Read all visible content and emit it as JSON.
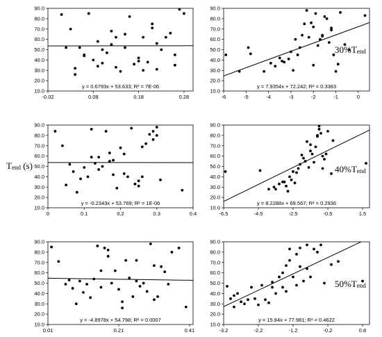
{
  "ylabel": {
    "main": "T",
    "sub": "end",
    "unit": " (s)"
  },
  "row_labels": [
    {
      "prefix": "30%T",
      "sub": "end"
    },
    {
      "prefix": "40%T",
      "sub": "end"
    },
    {
      "prefix": "50%T",
      "sub": "end"
    }
  ],
  "chart_data": [
    {
      "type": "scatter",
      "row": 0,
      "col": 0,
      "xlim": [
        -0.02,
        0.3
      ],
      "ylim": [
        10,
        90
      ],
      "xticks": [
        -0.02,
        0.08,
        0.18,
        0.28
      ],
      "xtick_labels": [
        "-0.02",
        "0.08",
        "0.18",
        "0.28"
      ],
      "yticks": [
        10,
        20,
        30,
        40,
        50,
        60,
        70,
        80,
        90
      ],
      "ytick_labels": [
        "10.0",
        "20.0",
        "30.0",
        "40.0",
        "50.0",
        "60.0",
        "70.0",
        "80.0",
        "90.0"
      ],
      "fit": {
        "slope": 0.6793,
        "intercept": 53.633
      },
      "equation": "y = 0.6793x + 53.633;  R² = 7E-06",
      "x": [
        0.01,
        0.02,
        0.03,
        0.04,
        0.05,
        0.06,
        0.07,
        0.08,
        0.09,
        0.1,
        0.11,
        0.12,
        0.13,
        0.14,
        0.15,
        0.16,
        0.17,
        0.18,
        0.19,
        0.2,
        0.21,
        0.22,
        0.23,
        0.24,
        0.25,
        0.26,
        0.27,
        0.28,
        0.04,
        0.06,
        0.09,
        0.12,
        0.15,
        0.19,
        0.22,
        0.26,
        0.13,
        0.18,
        0.21,
        0.1
      ],
      "y": [
        84,
        52,
        70,
        32,
        52,
        44,
        85,
        40,
        58,
        50,
        47,
        68,
        62,
        29,
        52,
        82,
        36,
        42,
        62,
        38,
        75,
        31,
        50,
        62,
        66,
        35,
        89,
        85,
        26,
        45,
        34,
        55,
        65,
        30,
        56,
        45,
        33,
        39,
        71,
        37
      ]
    },
    {
      "type": "scatter",
      "row": 0,
      "col": 1,
      "xlim": [
        -6,
        0.5
      ],
      "ylim": [
        10,
        90
      ],
      "xticks": [
        -6,
        -5,
        -4,
        -3,
        -2,
        -1,
        0
      ],
      "xtick_labels": [
        "-6",
        "-5",
        "-4",
        "-3",
        "-2",
        "-1",
        "0"
      ],
      "yticks": [
        10,
        20,
        30,
        40,
        50,
        60,
        70,
        80,
        90
      ],
      "ytick_labels": [
        "10.0",
        "20.0",
        "30.0",
        "40.0",
        "50.0",
        "60.0",
        "70.0",
        "80.0",
        "90.0"
      ],
      "fit": {
        "slope": 7.9354,
        "intercept": 72.242
      },
      "equation": "y = 7.9354x + 72.242;  R² = 0.3383",
      "x": [
        -5.9,
        -5.3,
        -4.9,
        -4.8,
        -4.2,
        -3.9,
        -3.7,
        -3.5,
        -3.3,
        -3.1,
        -3.0,
        -2.8,
        -2.6,
        -2.5,
        -2.4,
        -2.3,
        -2.2,
        -2.1,
        -2.0,
        -1.9,
        -1.8,
        -1.7,
        -1.6,
        -1.5,
        -1.4,
        -1.3,
        -1.2,
        -1.1,
        -1.0,
        -0.9,
        -0.8,
        -0.6,
        -0.4,
        0.3,
        -2.9,
        -3.4,
        -2.7,
        -2.0,
        -1.6,
        -1.2
      ],
      "y": [
        45,
        29,
        52,
        46,
        29,
        37,
        34,
        42,
        38,
        41,
        48,
        60,
        52,
        64,
        75,
        88,
        62,
        76,
        72,
        85,
        54,
        60,
        63,
        82,
        80,
        57,
        71,
        45,
        29,
        36,
        86,
        55,
        50,
        83,
        30,
        39,
        45,
        35,
        64,
        69
      ]
    },
    {
      "type": "scatter",
      "row": 1,
      "col": 0,
      "xlim": [
        0,
        0.4
      ],
      "ylim": [
        10,
        90
      ],
      "xticks": [
        0,
        0.1,
        0.2,
        0.3,
        0.4
      ],
      "xtick_labels": [
        "0",
        "0.1",
        "0.2",
        "0.3",
        "0.4"
      ],
      "yticks": [
        10,
        20,
        30,
        40,
        50,
        60,
        70,
        80,
        90
      ],
      "ytick_labels": [
        "10.0",
        "20.0",
        "30.0",
        "40.0",
        "50.0",
        "60.0",
        "70.0",
        "80.0",
        "90.0"
      ],
      "fit": {
        "slope": -0.2343,
        "intercept": 53.769
      },
      "equation": "y = -0.2343x + 53.769;  R² = 1E-06",
      "x": [
        0.02,
        0.04,
        0.05,
        0.06,
        0.08,
        0.1,
        0.11,
        0.12,
        0.13,
        0.14,
        0.15,
        0.16,
        0.17,
        0.18,
        0.19,
        0.2,
        0.21,
        0.22,
        0.23,
        0.24,
        0.25,
        0.26,
        0.27,
        0.28,
        0.29,
        0.3,
        0.31,
        0.37,
        0.07,
        0.09,
        0.14,
        0.17,
        0.21,
        0.24,
        0.26,
        0.29,
        0.12,
        0.18,
        0.25,
        0.3
      ],
      "y": [
        84,
        70,
        32,
        52,
        25,
        49,
        40,
        86,
        53,
        59,
        50,
        84,
        63,
        42,
        29,
        68,
        62,
        40,
        87,
        33,
        36,
        40,
        72,
        81,
        84,
        88,
        37,
        27,
        45,
        38,
        47,
        55,
        43,
        33,
        69,
        76,
        59,
        56,
        31,
        80
      ]
    },
    {
      "type": "scatter",
      "row": 1,
      "col": 1,
      "xlim": [
        -6.5,
        1.9
      ],
      "ylim": [
        10,
        90
      ],
      "xticks": [
        -6.5,
        -4.5,
        -2.5,
        -0.5,
        1.5
      ],
      "xtick_labels": [
        "-6.5",
        "-4.5",
        "-2.5",
        "-0.5",
        "1.5"
      ],
      "yticks": [
        10,
        20,
        30,
        40,
        50,
        60,
        70,
        80,
        90
      ],
      "ytick_labels": [
        "10.0",
        "20.0",
        "30.0",
        "40.0",
        "50.0",
        "60.0",
        "70.0",
        "80.0",
        "90.0"
      ],
      "fit": {
        "slope": 8.2288,
        "intercept": 69.567
      },
      "equation": "y = 8.2288x + 69.567;  R² = 0.2936",
      "x": [
        -6.4,
        -4.4,
        -3.9,
        -3.6,
        -3.3,
        -3.1,
        -2.9,
        -2.8,
        -2.6,
        -2.4,
        -2.3,
        -2.1,
        -2.0,
        -1.8,
        -1.7,
        -1.6,
        -1.5,
        -1.4,
        -1.3,
        -1.2,
        -1.1,
        -1.0,
        -0.9,
        -0.8,
        -0.7,
        -0.6,
        -0.5,
        -0.3,
        1.7,
        -3.0,
        -2.7,
        -2.2,
        -1.9,
        -1.5,
        -1.1,
        -0.8,
        -0.2,
        -3.5,
        -2.5,
        -1.0
      ],
      "y": [
        45,
        46,
        28,
        30,
        33,
        35,
        31,
        26,
        37,
        34,
        44,
        52,
        61,
        55,
        74,
        49,
        65,
        62,
        54,
        69,
        79,
        86,
        82,
        48,
        57,
        62,
        84,
        43,
        53,
        35,
        40,
        48,
        58,
        71,
        80,
        60,
        75,
        28,
        45,
        89
      ]
    },
    {
      "type": "scatter",
      "row": 2,
      "col": 0,
      "xlim": [
        0.01,
        0.42
      ],
      "ylim": [
        10,
        90
      ],
      "xticks": [
        0.01,
        0.21,
        0.41
      ],
      "xtick_labels": [
        "0.01",
        "0.21",
        "0.41"
      ],
      "yticks": [
        10,
        20,
        30,
        40,
        50,
        60,
        70,
        80,
        90
      ],
      "ytick_labels": [
        "10.0",
        "20.0",
        "30.0",
        "40.0",
        "50.0",
        "60.0",
        "70.0",
        "80.0",
        "90.0"
      ],
      "fit": {
        "slope": -4.8978,
        "intercept": 54.798
      },
      "equation": "y = -4.8978x + 54.798;  R² = 0.0007",
      "x": [
        0.02,
        0.04,
        0.06,
        0.08,
        0.09,
        0.1,
        0.12,
        0.13,
        0.14,
        0.15,
        0.16,
        0.17,
        0.18,
        0.19,
        0.2,
        0.21,
        0.22,
        0.23,
        0.24,
        0.25,
        0.26,
        0.27,
        0.28,
        0.29,
        0.3,
        0.31,
        0.32,
        0.33,
        0.34,
        0.36,
        0.38,
        0.4,
        0.07,
        0.11,
        0.16,
        0.22,
        0.26,
        0.31,
        0.35,
        0.18
      ],
      "y": [
        85,
        71,
        49,
        45,
        30,
        52,
        49,
        36,
        54,
        86,
        46,
        84,
        82,
        50,
        62,
        44,
        26,
        72,
        55,
        37,
        52,
        47,
        50,
        42,
        88,
        34,
        37,
        66,
        61,
        80,
        84,
        27,
        53,
        41,
        62,
        32,
        72,
        67,
        49,
        76
      ]
    },
    {
      "type": "scatter",
      "row": 2,
      "col": 1,
      "xlim": [
        -3.2,
        1.0
      ],
      "ylim": [
        10,
        90
      ],
      "xticks": [
        -3.2,
        -2.2,
        -1.2,
        -0.2,
        0.8
      ],
      "xtick_labels": [
        "-3.2",
        "-2.2",
        "-1.2",
        "-0.2",
        "0.8"
      ],
      "yticks": [
        10,
        20,
        30,
        40,
        50,
        60,
        70,
        80,
        90
      ],
      "ytick_labels": [
        "10.0",
        "20.0",
        "30.0",
        "40.0",
        "50.0",
        "60.0",
        "70.0",
        "80.0",
        "90.0"
      ],
      "fit": {
        "slope": 15.84,
        "intercept": 77.981
      },
      "equation": "y = 15.84x + 77.981;  R² = 0.4622",
      "x": [
        -3.1,
        -3.0,
        -2.9,
        -2.8,
        -2.7,
        -2.6,
        -2.4,
        -2.3,
        -2.1,
        -2.0,
        -1.9,
        -1.8,
        -1.7,
        -1.6,
        -1.5,
        -1.5,
        -1.4,
        -1.3,
        -1.3,
        -1.2,
        -1.1,
        -1.0,
        -1.0,
        -0.9,
        -0.8,
        -0.7,
        -0.6,
        -0.5,
        -0.3,
        -0.1,
        0.1,
        0.8,
        -2.9,
        -2.5,
        -2.2,
        -1.8,
        -1.4,
        -1.1,
        -0.8,
        -0.4
      ],
      "y": [
        47,
        35,
        27,
        40,
        32,
        30,
        46,
        35,
        48,
        34,
        31,
        51,
        40,
        56,
        60,
        46,
        67,
        72,
        83,
        56,
        48,
        84,
        66,
        52,
        87,
        56,
        83,
        80,
        50,
        68,
        71,
        52,
        38,
        34,
        29,
        46,
        42,
        78,
        64,
        87
      ]
    }
  ]
}
